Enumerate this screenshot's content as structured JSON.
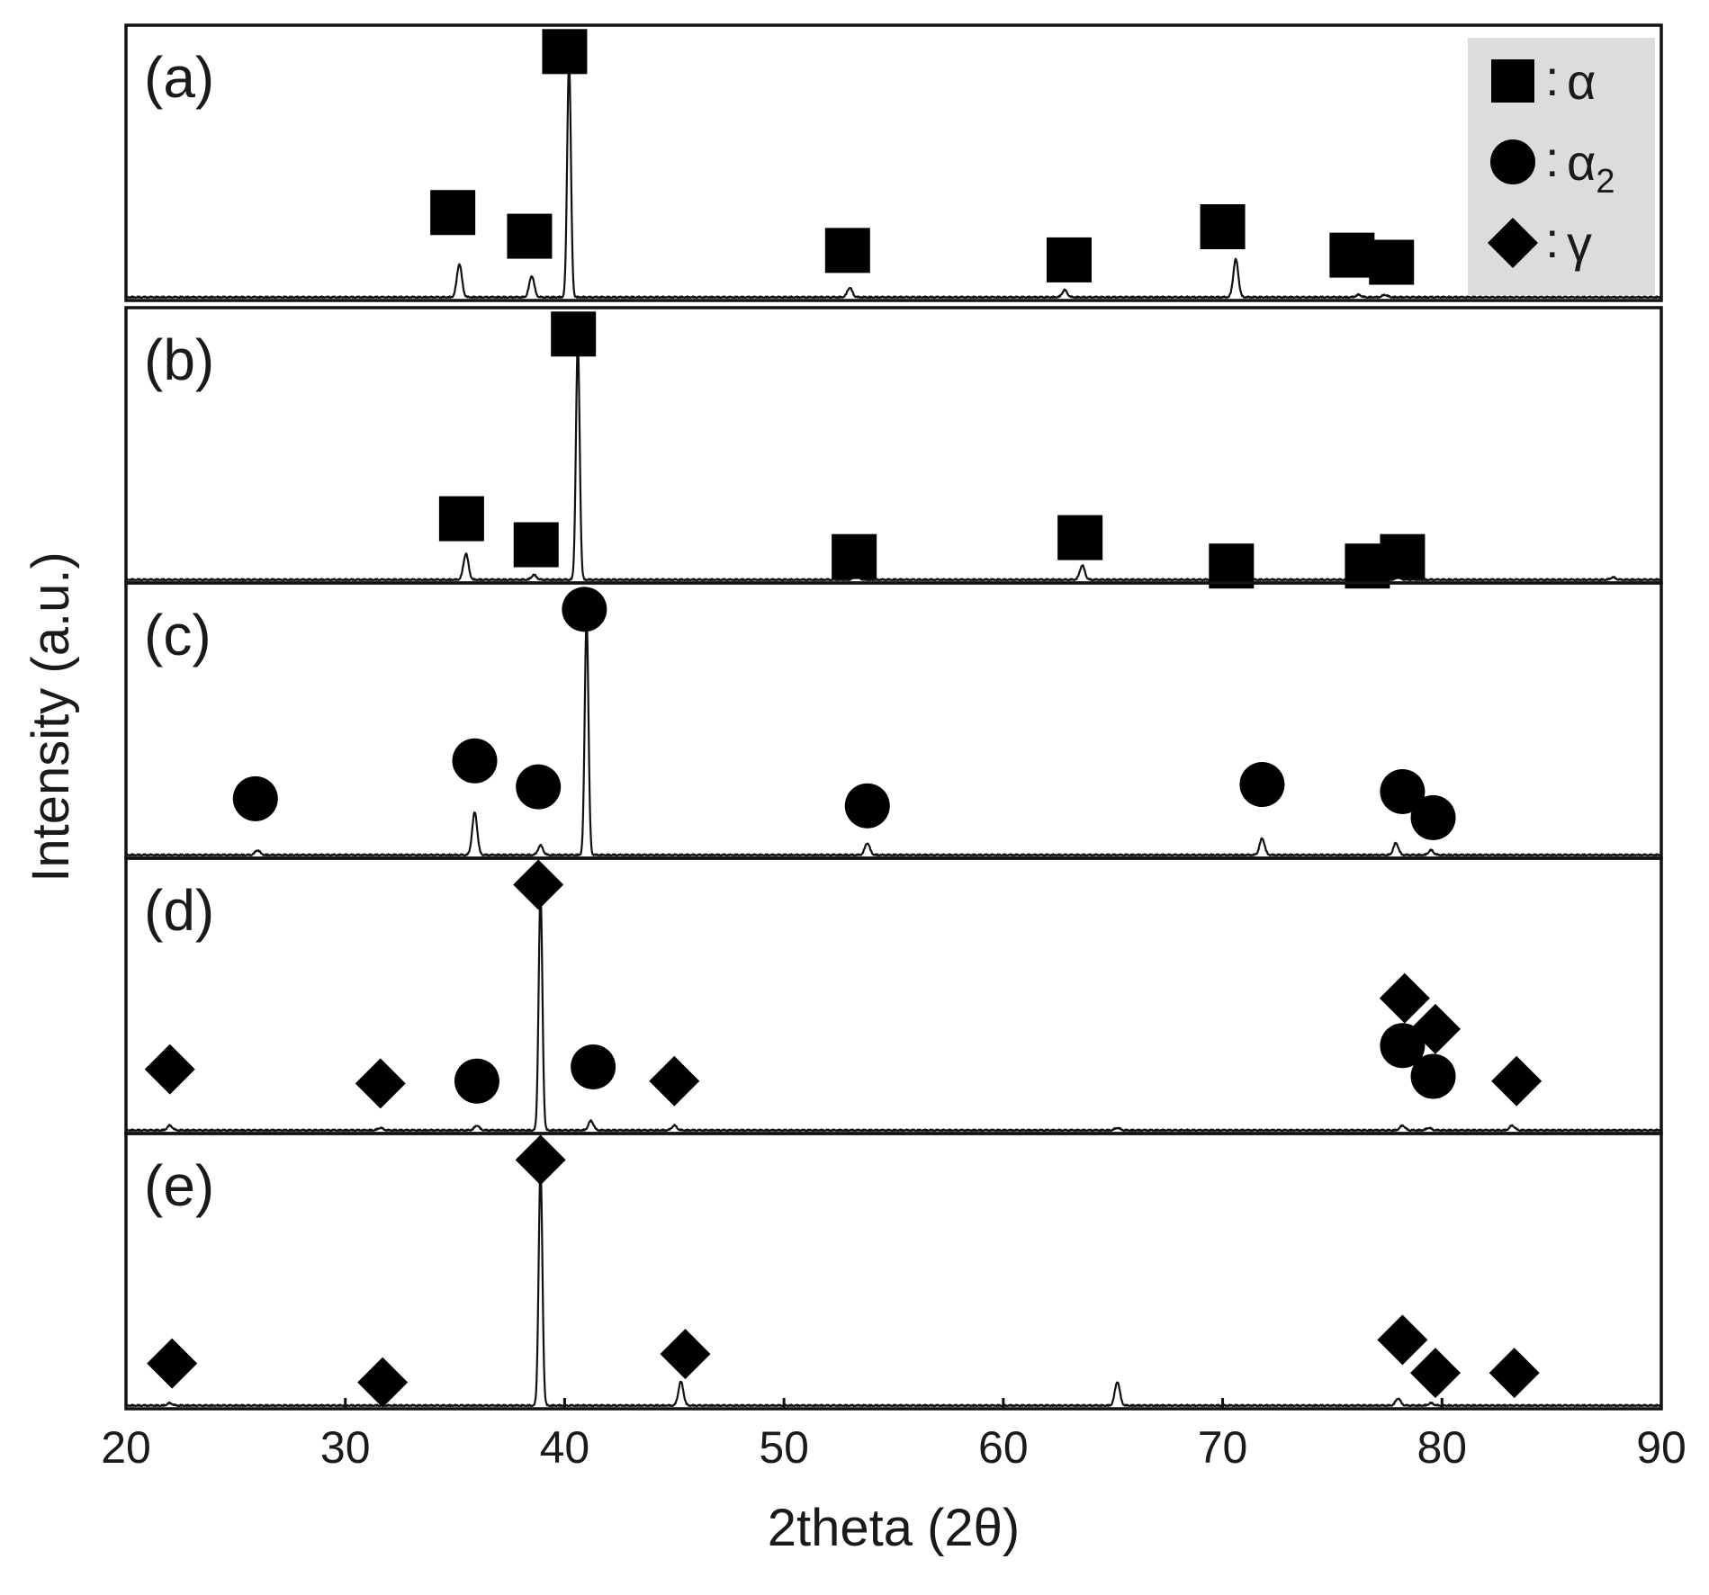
{
  "chart_data": {
    "type": "line",
    "title": "",
    "xlabel": "2theta (2θ)",
    "ylabel": "Intensity (a.u.)",
    "xlim": [
      20,
      90
    ],
    "x_ticks": [
      "20",
      "30",
      "40",
      "50",
      "60",
      "70",
      "80",
      "90"
    ],
    "grid": false,
    "stacked_panels": true,
    "legend": {
      "position": "top-right",
      "background": "#dcdcdc",
      "entries": [
        {
          "marker": "square",
          "label": "α",
          "sub": ""
        },
        {
          "marker": "circle",
          "label": "α",
          "sub": "2"
        },
        {
          "marker": "diamond",
          "label": "γ",
          "sub": ""
        }
      ]
    },
    "panels": [
      {
        "label": "(a)",
        "peaks": [
          {
            "x": 35.2,
            "h": 0.14
          },
          {
            "x": 38.5,
            "h": 0.09
          },
          {
            "x": 40.2,
            "h": 1.0
          },
          {
            "x": 53.0,
            "h": 0.04
          },
          {
            "x": 62.8,
            "h": 0.03
          },
          {
            "x": 70.6,
            "h": 0.16
          },
          {
            "x": 76.2,
            "h": 0.01
          },
          {
            "x": 77.4,
            "h": 0.01
          }
        ],
        "markers": [
          {
            "x": 40.0,
            "y": 1.04,
            "shape": "square"
          },
          {
            "x": 34.9,
            "y": 0.36,
            "shape": "square"
          },
          {
            "x": 38.4,
            "y": 0.26,
            "shape": "square"
          },
          {
            "x": 52.9,
            "y": 0.2,
            "shape": "square"
          },
          {
            "x": 63.0,
            "y": 0.16,
            "shape": "square"
          },
          {
            "x": 70.0,
            "y": 0.3,
            "shape": "square"
          },
          {
            "x": 75.9,
            "y": 0.18,
            "shape": "square"
          },
          {
            "x": 77.7,
            "y": 0.15,
            "shape": "square"
          }
        ]
      },
      {
        "label": "(b)",
        "peaks": [
          {
            "x": 35.5,
            "h": 0.11
          },
          {
            "x": 38.6,
            "h": 0.02
          },
          {
            "x": 40.6,
            "h": 1.0
          },
          {
            "x": 53.3,
            "h": 0.02
          },
          {
            "x": 63.6,
            "h": 0.06
          },
          {
            "x": 78.0,
            "h": 0.01
          },
          {
            "x": 87.8,
            "h": 0.01
          }
        ],
        "markers": [
          {
            "x": 40.4,
            "y": 1.04,
            "shape": "square"
          },
          {
            "x": 35.3,
            "y": 0.26,
            "shape": "square"
          },
          {
            "x": 38.7,
            "y": 0.15,
            "shape": "square"
          },
          {
            "x": 53.2,
            "y": 0.1,
            "shape": "square"
          },
          {
            "x": 63.5,
            "y": 0.18,
            "shape": "square"
          },
          {
            "x": 70.4,
            "y": 0.06,
            "shape": "square"
          },
          {
            "x": 76.6,
            "y": 0.06,
            "shape": "square"
          },
          {
            "x": 78.2,
            "y": 0.1,
            "shape": "square"
          }
        ]
      },
      {
        "label": "(c)",
        "peaks": [
          {
            "x": 26.0,
            "h": 0.02
          },
          {
            "x": 35.9,
            "h": 0.18
          },
          {
            "x": 38.9,
            "h": 0.04
          },
          {
            "x": 41.0,
            "h": 1.0
          },
          {
            "x": 53.8,
            "h": 0.05
          },
          {
            "x": 71.8,
            "h": 0.07
          },
          {
            "x": 77.9,
            "h": 0.05
          },
          {
            "x": 79.5,
            "h": 0.02
          }
        ],
        "markers": [
          {
            "x": 40.9,
            "y": 1.04,
            "shape": "circle"
          },
          {
            "x": 25.9,
            "y": 0.24,
            "shape": "circle"
          },
          {
            "x": 35.9,
            "y": 0.4,
            "shape": "circle"
          },
          {
            "x": 38.8,
            "y": 0.29,
            "shape": "circle"
          },
          {
            "x": 53.8,
            "y": 0.21,
            "shape": "circle"
          },
          {
            "x": 71.8,
            "y": 0.3,
            "shape": "circle"
          },
          {
            "x": 78.2,
            "y": 0.27,
            "shape": "circle"
          },
          {
            "x": 79.6,
            "y": 0.16,
            "shape": "circle"
          }
        ]
      },
      {
        "label": "(d)",
        "peaks": [
          {
            "x": 22.0,
            "h": 0.02
          },
          {
            "x": 31.6,
            "h": 0.01
          },
          {
            "x": 36.0,
            "h": 0.02
          },
          {
            "x": 38.9,
            "h": 1.0
          },
          {
            "x": 41.2,
            "h": 0.04
          },
          {
            "x": 45.0,
            "h": 0.02
          },
          {
            "x": 65.2,
            "h": 0.01
          },
          {
            "x": 78.2,
            "h": 0.02
          },
          {
            "x": 79.4,
            "h": 0.01
          },
          {
            "x": 83.2,
            "h": 0.02
          }
        ],
        "markers": [
          {
            "x": 38.8,
            "y": 1.04,
            "shape": "diamond"
          },
          {
            "x": 22.0,
            "y": 0.26,
            "shape": "diamond"
          },
          {
            "x": 31.6,
            "y": 0.2,
            "shape": "diamond"
          },
          {
            "x": 36.0,
            "y": 0.21,
            "shape": "circle"
          },
          {
            "x": 41.3,
            "y": 0.27,
            "shape": "circle"
          },
          {
            "x": 45.0,
            "y": 0.21,
            "shape": "diamond"
          },
          {
            "x": 78.3,
            "y": 0.56,
            "shape": "diamond"
          },
          {
            "x": 79.7,
            "y": 0.43,
            "shape": "diamond"
          },
          {
            "x": 78.2,
            "y": 0.36,
            "shape": "circle"
          },
          {
            "x": 79.6,
            "y": 0.23,
            "shape": "circle"
          },
          {
            "x": 83.4,
            "y": 0.21,
            "shape": "diamond"
          }
        ]
      },
      {
        "label": "(e)",
        "peaks": [
          {
            "x": 22.0,
            "h": 0.01
          },
          {
            "x": 38.9,
            "h": 1.0
          },
          {
            "x": 45.3,
            "h": 0.1
          },
          {
            "x": 65.2,
            "h": 0.1
          },
          {
            "x": 78.0,
            "h": 0.03
          },
          {
            "x": 79.5,
            "h": 0.01
          }
        ],
        "markers": [
          {
            "x": 38.9,
            "y": 1.04,
            "shape": "diamond"
          },
          {
            "x": 22.1,
            "y": 0.18,
            "shape": "diamond"
          },
          {
            "x": 31.7,
            "y": 0.1,
            "shape": "diamond"
          },
          {
            "x": 45.5,
            "y": 0.22,
            "shape": "diamond"
          },
          {
            "x": 78.2,
            "y": 0.28,
            "shape": "diamond"
          },
          {
            "x": 79.7,
            "y": 0.14,
            "shape": "diamond"
          },
          {
            "x": 83.3,
            "y": 0.14,
            "shape": "diamond"
          }
        ]
      }
    ]
  }
}
